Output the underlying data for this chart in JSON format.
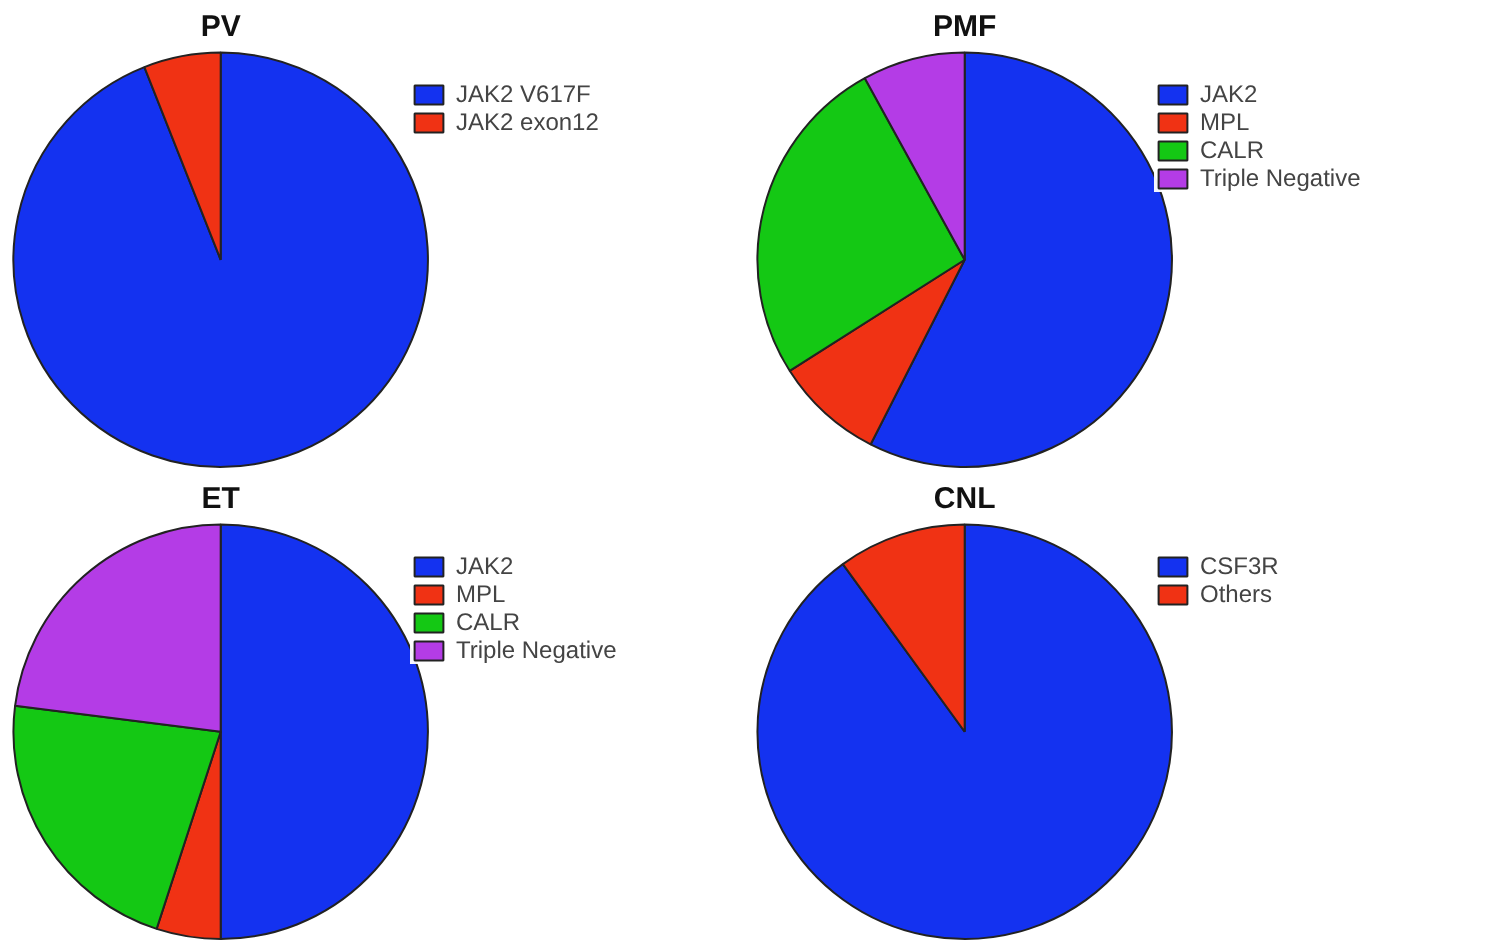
{
  "chart_data": [
    {
      "type": "pie",
      "title": "PV",
      "categories": [
        "JAK2 V617F",
        "JAK2 exon12"
      ],
      "values": [
        94,
        6
      ],
      "colors": [
        "#1432f0",
        "#f03214"
      ],
      "legend": "right"
    },
    {
      "type": "pie",
      "title": "PMF",
      "categories": [
        "JAK2",
        "MPL",
        "CALR",
        "Triple Negative"
      ],
      "values": [
        57.5,
        8.5,
        26,
        8
      ],
      "colors": [
        "#1432f0",
        "#f03214",
        "#14c814",
        "#b43ce6"
      ],
      "legend": "right"
    },
    {
      "type": "pie",
      "title": "ET",
      "categories": [
        "JAK2",
        "MPL",
        "CALR",
        "Triple Negative"
      ],
      "values": [
        50,
        5,
        22,
        23
      ],
      "colors": [
        "#1432f0",
        "#f03214",
        "#14c814",
        "#b43ce6"
      ],
      "legend": "right"
    },
    {
      "type": "pie",
      "title": "CNL",
      "categories": [
        "CSF3R",
        "Others"
      ],
      "values": [
        90,
        10
      ],
      "colors": [
        "#1432f0",
        "#f03214"
      ],
      "legend": "right"
    }
  ]
}
